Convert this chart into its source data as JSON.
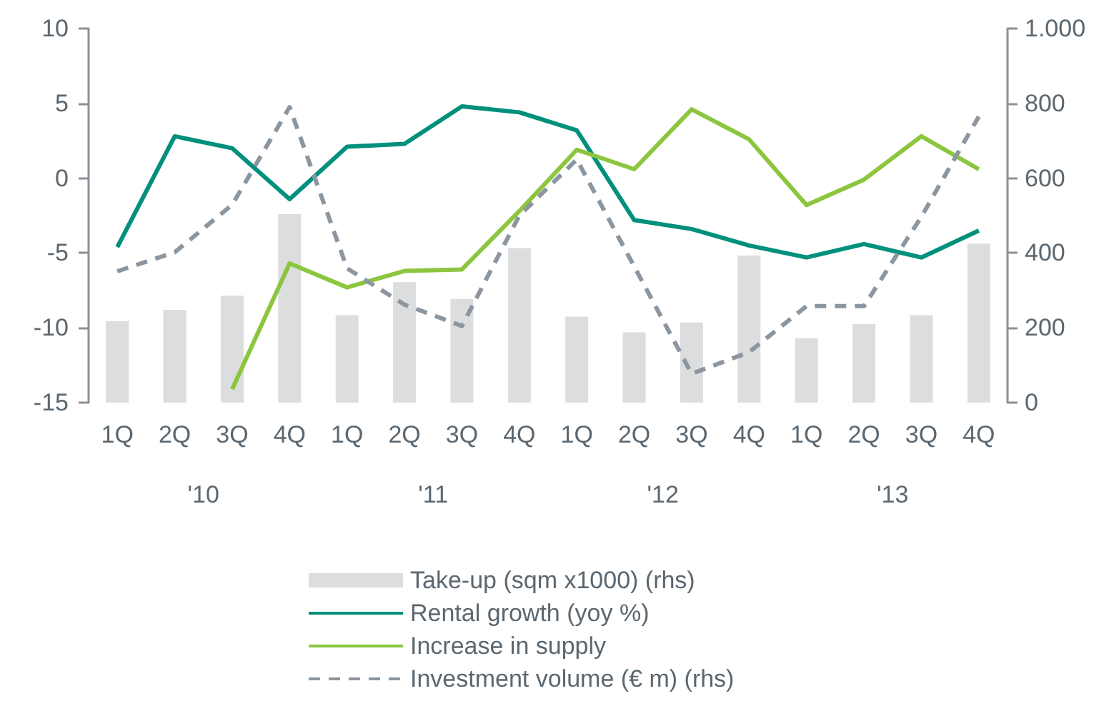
{
  "chart_data": {
    "type": "line",
    "categories": [
      "1Q",
      "2Q",
      "3Q",
      "4Q",
      "1Q",
      "2Q",
      "3Q",
      "4Q",
      "1Q",
      "2Q",
      "3Q",
      "4Q",
      "1Q",
      "2Q",
      "3Q",
      "4Q"
    ],
    "series": [
      {
        "name": "Take-up (sqm x1000) (rhs)",
        "type": "bar",
        "axis": "y2",
        "color": "#dcdddf",
        "values": [
          218,
          248,
          286,
          504,
          234,
          322,
          277,
          413,
          230,
          188,
          214,
          393,
          172,
          210,
          234,
          425
        ]
      },
      {
        "name": "Rental growth (yoy %)",
        "color": "#00907c",
        "values": [
          -4.6,
          2.8,
          2.0,
          -1.4,
          2.1,
          2.3,
          4.8,
          4.4,
          3.2,
          -2.8,
          -3.4,
          -4.5,
          -5.3,
          -4.4,
          -5.3,
          -3.5
        ]
      },
      {
        "name": "Increase in supply",
        "color": "#8cc63f",
        "values": [
          null,
          null,
          -14.1,
          -5.7,
          -7.3,
          -6.2,
          -6.1,
          -2.2,
          1.9,
          0.6,
          4.6,
          2.6,
          -1.8,
          -0.1,
          2.8,
          0.6
        ]
      },
      {
        "name": "Investment volume (€ m) (rhs)",
        "axis": "y2",
        "line_style": "dashed",
        "color": "#8c96a0",
        "values": [
          351,
          402,
          529,
          790,
          359,
          262,
          205,
          500,
          650,
          364,
          77,
          135,
          258,
          258,
          497,
          765
        ]
      }
    ],
    "ylim": [
      -15,
      10
    ],
    "yticks": [
      -15,
      -10,
      -5,
      0,
      5,
      10
    ],
    "y2lim": [
      0,
      1000
    ],
    "y2ticks": [
      0,
      200,
      400,
      600,
      800,
      {
        "value": 1000,
        "label": "1.000"
      }
    ],
    "annotations": [
      "'10",
      "'11",
      "'12",
      "'13"
    ],
    "grid": false,
    "legend": "bottom",
    "marker": "none"
  }
}
